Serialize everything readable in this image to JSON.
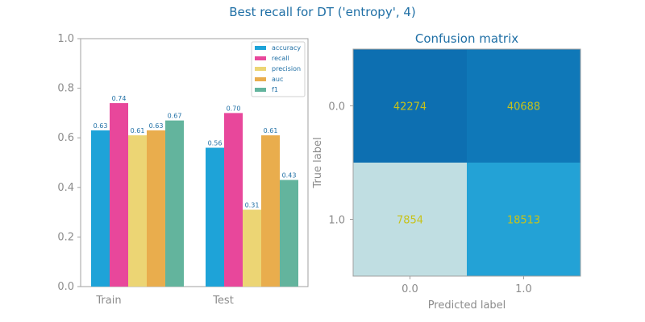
{
  "figure": {
    "title": "Best recall for DT ('entropy', 4)"
  },
  "chart_data": [
    {
      "type": "bar",
      "categories": [
        "Train",
        "Test"
      ],
      "series": [
        {
          "name": "accuracy",
          "color": "#1ea3d8",
          "values": [
            0.63,
            0.56
          ]
        },
        {
          "name": "recall",
          "color": "#e8479b",
          "values": [
            0.74,
            0.7
          ]
        },
        {
          "name": "precision",
          "color": "#ecd574",
          "values": [
            0.61,
            0.31
          ]
        },
        {
          "name": "auc",
          "color": "#e9ad4d",
          "values": [
            0.63,
            0.61
          ]
        },
        {
          "name": "f1",
          "color": "#63b49d",
          "values": [
            0.67,
            0.43
          ]
        }
      ],
      "value_labels": [
        [
          "0.63",
          "0.74",
          "0.61",
          "0.63",
          "0.67"
        ],
        [
          "0.56",
          "0.70",
          "0.31",
          "0.61",
          "0.43"
        ]
      ],
      "ylim": [
        0,
        1.0
      ],
      "yticks": [
        "0.0",
        "0.2",
        "0.4",
        "0.6",
        "0.8",
        "1.0"
      ],
      "title": "",
      "xlabel": "",
      "ylabel": "",
      "grid": false,
      "legend_position": "top-right"
    },
    {
      "type": "heatmap",
      "title": "Confusion matrix",
      "xlabel": "Predicted label",
      "ylabel": "True label",
      "x_categories": [
        "0.0",
        "1.0"
      ],
      "y_categories": [
        "0.0",
        "1.0"
      ],
      "values": [
        [
          42274,
          40688
        ],
        [
          7854,
          18513
        ]
      ],
      "cell_labels": [
        [
          "42274",
          "40688"
        ],
        [
          "7854",
          "18513"
        ]
      ],
      "cell_colors": [
        [
          "#0d6fb1",
          "#0f78b8"
        ],
        [
          "#c0dee2",
          "#23a2d6"
        ]
      ],
      "label_color": "#c7c21a",
      "grid": false
    }
  ]
}
